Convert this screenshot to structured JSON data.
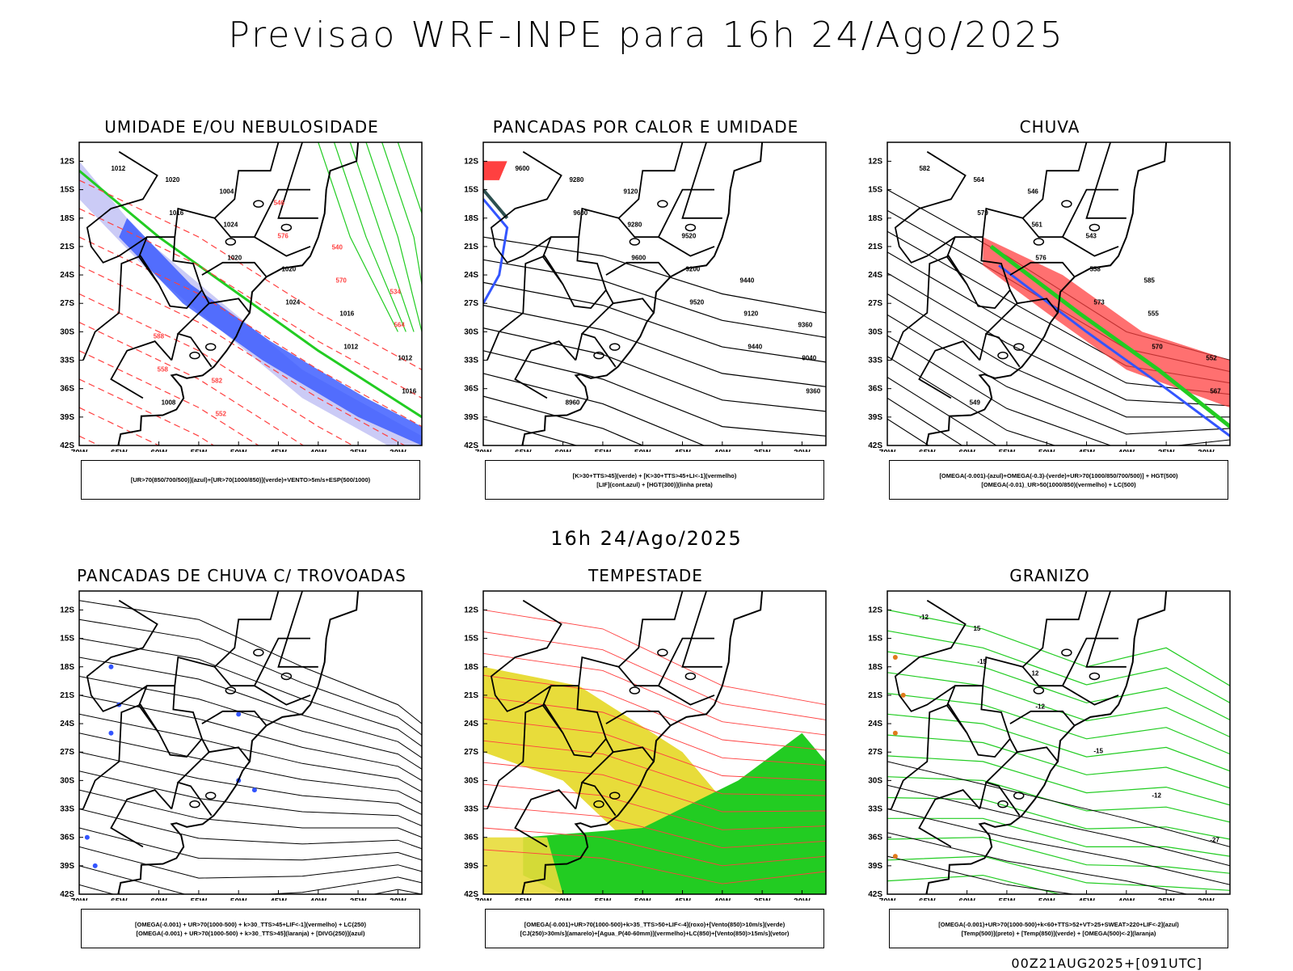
{
  "header": {
    "title": "Previsao WRF-INPE  para 16h 24/Ago/2025",
    "subtitle": "16h 24/Ago/2025",
    "footer": "00Z21AUG2025+[091UTC]"
  },
  "axes": {
    "lat_labels": [
      "12S",
      "15S",
      "18S",
      "21S",
      "24S",
      "27S",
      "30S",
      "33S",
      "36S",
      "39S",
      "42S"
    ],
    "lon_labels": [
      "70W",
      "65W",
      "60W",
      "55W",
      "50W",
      "45W",
      "40W",
      "35W",
      "30W"
    ]
  },
  "colors": {
    "red": "#ff4040",
    "green": "#22cc22",
    "blue": "#3355ff",
    "lightblue": "#a8a8f0",
    "yellow": "#e8dc3a",
    "orange": "#e07a1c",
    "darkteal": "#2c4f4f"
  },
  "panels": [
    {
      "id": "umidade",
      "title": "UMIDADE E/OU NEBULOSIDADE",
      "legend": [
        "[UR>70(850/700/500)](azul)+[UR>70(1000/850)](verde)+VENTO>5m/s+ESP(500/1000)"
      ],
      "labels": [
        "1012",
        "1016",
        "1020",
        "1024",
        "1012",
        "1016",
        "1020",
        "1024",
        "1020",
        "1016",
        "1012",
        "1008",
        "1004",
        "576",
        "570",
        "564",
        "558",
        "552",
        "546",
        "540",
        "534",
        "588",
        "582"
      ]
    },
    {
      "id": "pancadas-calor",
      "title": "PANCADAS POR CALOR E UMIDADE",
      "legend": [
        "[K>30+TTS>45](verde) + [K>30+TTS>45+LI<-1](vermelho)",
        "[LIF](cont.azul) + [HGT(300)](linha preta)"
      ],
      "labels": [
        "9600",
        "9600",
        "9600",
        "9520",
        "9440",
        "9360",
        "9280",
        "9280",
        "9200",
        "9120",
        "9040",
        "8960",
        "9120",
        "9520",
        "9440",
        "9360"
      ]
    },
    {
      "id": "chuva",
      "title": "CHUVA",
      "legend": [
        "[OMEGA(-0.001)-(azul)+OMEGA(-0.3)-(verde)+UR>70(1000/850/700/500)] + HGT(500)",
        "[OMEGA(-0.01)_UR>50(1000/850)(vermelho) + LC(500)"
      ],
      "labels": [
        "582",
        "579",
        "576",
        "573",
        "570",
        "567",
        "564",
        "561",
        "558",
        "555",
        "552",
        "549",
        "546",
        "543",
        "585"
      ]
    },
    {
      "id": "pancadas-trovoadas",
      "title": "PANCADAS DE CHUVA C/ TROVOADAS",
      "legend": [
        "[OMEGA(-0.001) + UR>70(1000-500) + k>30_TTS>45+LIF<-1](vermelho) + LC(250)",
        "[OMEGA(-0.001) + UR>70(1000-500) + k>30_TTS>45](laranja) + [DIVG(250)](azul)"
      ],
      "labels": []
    },
    {
      "id": "tempestade",
      "title": "TEMPESTADE",
      "legend": [
        "[OMEGA(-0.001)+UR>70(1000-500)+k>35_TTS>50+LIF<-4](roxo)+[Vento(850)>10m/s](verde)",
        "[CJ(250)>30m/s](amarelo)+[Agua_P(40-60mm)](vermelho)+LC(850)+[Vento(850)>15m/s](vetor)"
      ],
      "labels": []
    },
    {
      "id": "granizo",
      "title": "GRANIZO",
      "legend": [
        "[OMEGA(-0.001)+UR>70(1000-500)+k<60+TTS>52+VT>25+SWEAT>220+LIF<-2](azul)",
        "[Temp(500)](preto) + [Temp(850)](verde) + [OMEGA(500)<-2](laranja)"
      ],
      "labels": [
        "-12",
        "-15",
        "-12",
        "-15",
        "-12",
        "-27",
        "15",
        "12"
      ]
    }
  ]
}
